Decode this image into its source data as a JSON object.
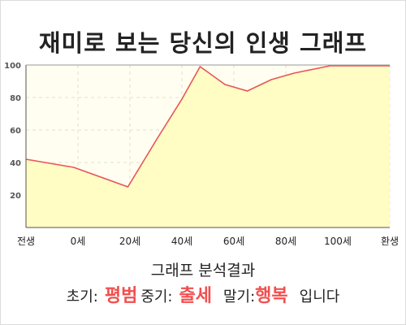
{
  "title": "재미로 보는 당신의 인생 그래프",
  "colors": {
    "line": "#e8545a",
    "fill": "#fffcc4",
    "plot_bg": "#fffef0",
    "highlight": "#f24f4f",
    "grid": "#e0e0d0"
  },
  "chart_data": {
    "type": "area",
    "title": "",
    "xlabel": "",
    "ylabel": "",
    "ylim": [
      0,
      100
    ],
    "yticks": [
      20,
      40,
      60,
      80,
      100
    ],
    "xticks": [
      {
        "label": "전생",
        "x": 0
      },
      {
        "label": "0세",
        "x": 1
      },
      {
        "label": "20세",
        "x": 2
      },
      {
        "label": "40세",
        "x": 3
      },
      {
        "label": "60세",
        "x": 4
      },
      {
        "label": "80세",
        "x": 5
      },
      {
        "label": "100세",
        "x": 6
      },
      {
        "label": "환생",
        "x": 7
      }
    ],
    "xlim": [
      0,
      7
    ],
    "grid": true,
    "series": [
      {
        "points": [
          [
            0,
            42
          ],
          [
            0.92,
            37
          ],
          [
            1.96,
            25
          ],
          [
            2.53,
            55
          ],
          [
            3.0,
            79
          ],
          [
            3.35,
            99
          ],
          [
            3.83,
            88
          ],
          [
            4.26,
            84
          ],
          [
            4.72,
            91
          ],
          [
            5.16,
            95
          ],
          [
            5.85,
            99.5
          ],
          [
            7.0,
            99.5
          ]
        ]
      }
    ]
  },
  "analysis": {
    "heading": "그래프 분석결과",
    "early_label": "초기:",
    "early_value": "평범",
    "mid_label": "중기:",
    "mid_value": "출세",
    "late_label": "말기:",
    "late_value": "행복",
    "ending": "입니다"
  }
}
